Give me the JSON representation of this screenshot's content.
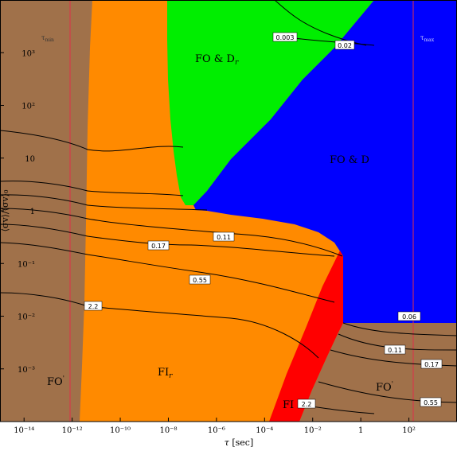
{
  "chart_data": {
    "type": "area",
    "xlabel": "τ [sec]",
    "ylabel": "⟨σv⟩/⟨σv⟩₀",
    "x_scale": "log",
    "y_scale": "log",
    "xlim": [
      1e-15,
      10000.0
    ],
    "ylim": [
      0.0001,
      10000
    ],
    "x_ticks": [
      "10⁻¹⁴",
      "10⁻¹²",
      "10⁻¹⁰",
      "10⁻⁸",
      "10⁻⁶",
      "10⁻⁴",
      "10⁻²",
      "1",
      "10²"
    ],
    "y_ticks": [
      "10⁻³",
      "10⁻²",
      "10⁻¹",
      "1",
      "10",
      "10²",
      "10³"
    ],
    "regions": [
      {
        "name": "FO'",
        "label": "FO",
        "color": "#a0714a"
      },
      {
        "name": "FI_r",
        "label": "FI",
        "color": "#ff8a00"
      },
      {
        "name": "FO & D_r",
        "label": "FO & D",
        "color": "#00ee00"
      },
      {
        "name": "FO & D",
        "label": "FO & D",
        "color": "#0000ff"
      },
      {
        "name": "FI",
        "label": "FI",
        "color": "#ff0000"
      },
      {
        "name": "FO' right",
        "label": "FO",
        "color": "#a0714a"
      }
    ],
    "reference_lines": [
      {
        "label": "τ_min",
        "log10_tau": -13.3
      },
      {
        "label": "τ_max",
        "log10_tau": 2.0
      }
    ],
    "contour_labels": [
      "0.003",
      "0.02",
      "0.11",
      "0.17",
      "0.55",
      "2.2",
      "0.06",
      "0.11",
      "0.17",
      "0.55",
      "2.2"
    ]
  },
  "axis": {
    "xlabel_tau": "τ",
    "xlabel_unit": " [sec]",
    "ylabel": "⟨σv⟩/⟨σv⟩₀"
  },
  "labels": {
    "fo_left": "FO",
    "fo_right": "FO",
    "fi_r": "FI",
    "fi_r_sub": "r",
    "fi": "FI",
    "fo_d_r": "FO & D",
    "fo_d_r_sub": "r",
    "fo_d": "FO & D",
    "tau_min": "τ",
    "tau_min_sub": "min",
    "tau_max": "τ",
    "tau_max_sub": "max"
  },
  "colors": {
    "brown": "#a0714a",
    "orange": "#ff8a00",
    "green": "#00ee00",
    "blue": "#0000ff",
    "red": "#ff0000"
  }
}
